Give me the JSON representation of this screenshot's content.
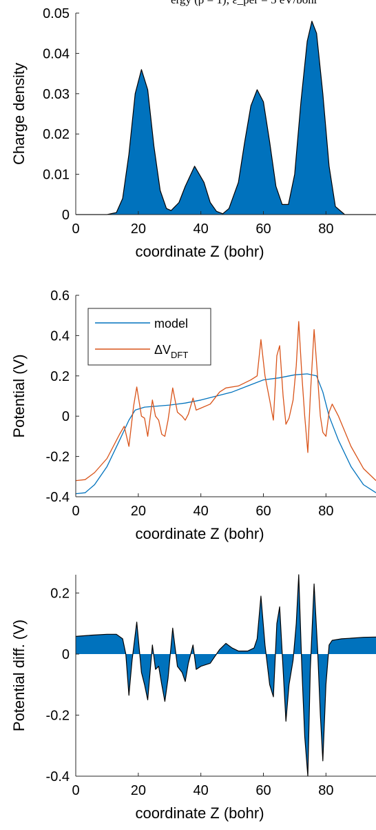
{
  "caption": "ergy (ρ = 1); ε_per = 5 eV/bohr",
  "chart_data": [
    {
      "type": "area",
      "xlabel": "coordinate Z (bohr)",
      "ylabel": "Charge density",
      "xlim": [
        0,
        96
      ],
      "ylim": [
        0,
        0.05
      ],
      "xticks": [
        0,
        20,
        40,
        60,
        80
      ],
      "yticks": [
        0,
        0.01,
        0.02,
        0.03,
        0.04,
        0.05
      ],
      "ytick_labels": [
        "0",
        "0.01",
        "0.02",
        "0.03",
        "0.04",
        "0.05"
      ],
      "fill_color": "#0072BD",
      "series": [
        {
          "x": [
            0,
            10,
            13,
            15,
            17,
            19,
            21,
            23,
            25,
            27,
            29,
            30.5,
            33,
            35,
            38,
            41,
            43,
            45,
            47,
            49,
            52,
            54,
            56,
            58,
            60,
            62,
            64,
            66,
            68,
            70,
            72,
            74,
            75.5,
            77,
            79,
            81,
            83,
            86,
            96
          ],
          "y": [
            0,
            0,
            0.0005,
            0.004,
            0.015,
            0.03,
            0.036,
            0.031,
            0.017,
            0.006,
            0.0015,
            0.001,
            0.003,
            0.007,
            0.012,
            0.008,
            0.003,
            0.0008,
            0.0002,
            0.0015,
            0.008,
            0.018,
            0.027,
            0.031,
            0.028,
            0.018,
            0.007,
            0.0025,
            0.0025,
            0.01,
            0.028,
            0.043,
            0.048,
            0.045,
            0.03,
            0.012,
            0.002,
            0,
            0
          ]
        }
      ]
    },
    {
      "type": "line",
      "xlabel": "coordinate Z (bohr)",
      "ylabel": "Potential (V)",
      "xlim": [
        0,
        96
      ],
      "ylim": [
        -0.4,
        0.6
      ],
      "xticks": [
        0,
        20,
        40,
        60,
        80
      ],
      "yticks": [
        -0.4,
        -0.2,
        0,
        0.2,
        0.4,
        0.6
      ],
      "ytick_labels": [
        "-0.4",
        "-0.2",
        "0",
        "0.2",
        "0.4",
        "0.6"
      ],
      "legend": "top-left",
      "series": [
        {
          "name": "model",
          "color": "#0072BD",
          "x": [
            0,
            3,
            6,
            10,
            14,
            17,
            19,
            22,
            26,
            30,
            35,
            40,
            45,
            50,
            55,
            60,
            65,
            70,
            74,
            77,
            79,
            81,
            84,
            88,
            92,
            96
          ],
          "y": [
            -0.385,
            -0.38,
            -0.34,
            -0.25,
            -0.12,
            -0.02,
            0.03,
            0.045,
            0.05,
            0.055,
            0.065,
            0.08,
            0.1,
            0.12,
            0.15,
            0.18,
            0.19,
            0.205,
            0.21,
            0.2,
            0.12,
            0.0,
            -0.12,
            -0.25,
            -0.34,
            -0.38
          ]
        },
        {
          "name": "ΔV_DFT",
          "color": "#D95319",
          "x": [
            0,
            3,
            6,
            10,
            14,
            15.5,
            17,
            18.5,
            19.5,
            21,
            22,
            23,
            24.5,
            25.5,
            26.5,
            27.5,
            28.5,
            29.5,
            31,
            32.5,
            34,
            35,
            36,
            37.5,
            38.5,
            40,
            43,
            46,
            48,
            52,
            56,
            58,
            59.2,
            60.5,
            62,
            63.2,
            64.3,
            65.2,
            66.3,
            67.2,
            68.2,
            69.5,
            70.5,
            71.3,
            72.3,
            73.2,
            74.2,
            75,
            76.2,
            77.3,
            78.2,
            79,
            80,
            81,
            82,
            84,
            88,
            92,
            96
          ],
          "y": [
            -0.32,
            -0.315,
            -0.28,
            -0.21,
            -0.09,
            -0.05,
            -0.15,
            0.05,
            0.145,
            0.0,
            -0.01,
            -0.1,
            0.08,
            0.0,
            -0.02,
            -0.09,
            -0.1,
            -0.02,
            0.14,
            0.02,
            0.0,
            -0.02,
            0.01,
            0.09,
            0.03,
            0.04,
            0.06,
            0.12,
            0.14,
            0.15,
            0.18,
            0.2,
            0.38,
            0.2,
            0.08,
            -0.02,
            0.3,
            0.35,
            0.1,
            -0.04,
            -0.01,
            0.08,
            0.25,
            0.47,
            0.2,
            0.0,
            -0.18,
            0.1,
            0.43,
            0.2,
            0.0,
            -0.08,
            -0.1,
            0.02,
            0.06,
            0.0,
            -0.15,
            -0.26,
            -0.32
          ]
        }
      ]
    },
    {
      "type": "area",
      "xlabel": "coordinate Z (bohr)",
      "ylabel": "Potential diff. (V)",
      "xlim": [
        0,
        96
      ],
      "ylim": [
        -0.4,
        0.26
      ],
      "xticks": [
        0,
        20,
        40,
        60,
        80
      ],
      "yticks": [
        -0.4,
        -0.2,
        0,
        0.2
      ],
      "ytick_labels": [
        "-0.4",
        "-0.2",
        "0",
        "0.2"
      ],
      "fill_color": "#0072BD",
      "series": [
        {
          "x": [
            0,
            5,
            10,
            13,
            15,
            16,
            17,
            18,
            19.5,
            21,
            22,
            23,
            24.5,
            25.5,
            26.5,
            27.5,
            28.5,
            29.5,
            31,
            32.5,
            34,
            35,
            36,
            37.5,
            38.5,
            40,
            43,
            46,
            48,
            50,
            52,
            55,
            57,
            58,
            59.2,
            60.5,
            62,
            63.2,
            64.3,
            65.2,
            66.3,
            67.2,
            68.2,
            69.5,
            70.5,
            71.3,
            72.3,
            73.2,
            74.2,
            75,
            76.2,
            77.3,
            78.2,
            79,
            80,
            81,
            82,
            85,
            88,
            92,
            96
          ],
          "y": [
            0.058,
            0.062,
            0.065,
            0.065,
            0.05,
            0.0,
            -0.135,
            -0.02,
            0.105,
            -0.06,
            -0.1,
            -0.15,
            0.03,
            -0.05,
            -0.04,
            -0.1,
            -0.155,
            -0.08,
            0.085,
            -0.04,
            -0.06,
            -0.09,
            -0.03,
            0.03,
            -0.05,
            -0.04,
            -0.03,
            0.015,
            0.035,
            0.02,
            0.01,
            0.01,
            0.02,
            0.05,
            0.19,
            0.03,
            -0.1,
            -0.14,
            0.1,
            0.155,
            -0.05,
            -0.22,
            -0.1,
            -0.02,
            0.1,
            0.26,
            -0.05,
            -0.27,
            -0.4,
            -0.05,
            0.23,
            0.02,
            -0.2,
            -0.35,
            -0.1,
            0.03,
            0.045,
            0.05,
            0.052,
            0.055,
            0.056
          ]
        }
      ]
    }
  ]
}
